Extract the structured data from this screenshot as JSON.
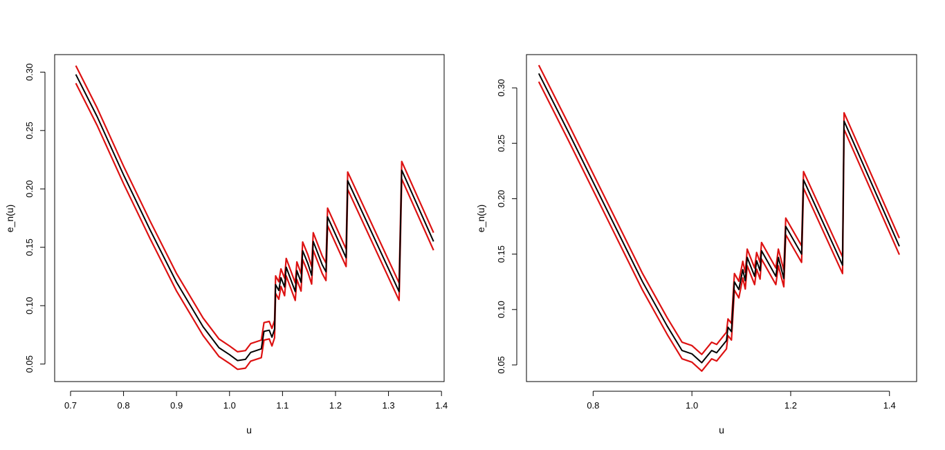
{
  "colors": {
    "main": "#000000",
    "band": "#dd1111",
    "frame": "#000000"
  },
  "chart_data": [
    {
      "type": "line",
      "xlabel": "u",
      "ylabel": "e_n(u)",
      "xlim": [
        0.67,
        1.405
      ],
      "ylim": [
        0.035,
        0.315
      ],
      "xticks": [
        0.7,
        0.8,
        0.9,
        1.0,
        1.1,
        1.2,
        1.3,
        1.4
      ],
      "xtick_labels": [
        "0.7",
        "0.8",
        "0.9",
        "1.0",
        "1.1",
        "1.2",
        "1.3",
        "1.4"
      ],
      "yticks": [
        0.05,
        0.1,
        0.15,
        0.2,
        0.25,
        0.3
      ],
      "ytick_labels": [
        "0.05",
        "0.10",
        "0.15",
        "0.20",
        "0.25",
        "0.30"
      ],
      "band_offset": 0.0075,
      "series": [
        {
          "color": "#000000",
          "points": [
            [
              0.71,
              0.298
            ],
            [
              0.75,
              0.262
            ],
            [
              0.8,
              0.212
            ],
            [
              0.85,
              0.165
            ],
            [
              0.9,
              0.12
            ],
            [
              0.95,
              0.082
            ],
            [
              0.98,
              0.064
            ],
            [
              1.0,
              0.058
            ],
            [
              1.015,
              0.053
            ],
            [
              1.03,
              0.054
            ],
            [
              1.04,
              0.06
            ],
            [
              1.06,
              0.063
            ],
            [
              1.065,
              0.078
            ],
            [
              1.075,
              0.079
            ],
            [
              1.08,
              0.073
            ],
            [
              1.085,
              0.08
            ],
            [
              1.087,
              0.118
            ],
            [
              1.093,
              0.113
            ],
            [
              1.097,
              0.124
            ],
            [
              1.104,
              0.116
            ],
            [
              1.107,
              0.133
            ],
            [
              1.124,
              0.112
            ],
            [
              1.127,
              0.13
            ],
            [
              1.135,
              0.12
            ],
            [
              1.138,
              0.147
            ],
            [
              1.148,
              0.136
            ],
            [
              1.155,
              0.126
            ],
            [
              1.158,
              0.155
            ],
            [
              1.175,
              0.135
            ],
            [
              1.182,
              0.129
            ],
            [
              1.185,
              0.176
            ],
            [
              1.22,
              0.141
            ],
            [
              1.223,
              0.207
            ],
            [
              1.32,
              0.112
            ],
            [
              1.325,
              0.216
            ],
            [
              1.385,
              0.155
            ]
          ]
        }
      ]
    },
    {
      "type": "line",
      "xlabel": "u",
      "ylabel": "e_n(u)",
      "xlim": [
        0.665,
        1.455
      ],
      "ylim": [
        0.035,
        0.33
      ],
      "xticks": [
        0.8,
        1.0,
        1.2,
        1.4
      ],
      "xtick_labels": [
        "0.8",
        "1.0",
        "1.2",
        "1.4"
      ],
      "yticks": [
        0.05,
        0.1,
        0.15,
        0.2,
        0.25,
        0.3
      ],
      "ytick_labels": [
        "0.05",
        "0.10",
        "0.15",
        "0.20",
        "0.25",
        "0.30"
      ],
      "band_offset": 0.0075,
      "series": [
        {
          "color": "#000000",
          "points": [
            [
              0.69,
              0.313
            ],
            [
              0.75,
              0.26
            ],
            [
              0.8,
              0.215
            ],
            [
              0.85,
              0.17
            ],
            [
              0.9,
              0.125
            ],
            [
              0.95,
              0.085
            ],
            [
              0.98,
              0.063
            ],
            [
              1.0,
              0.06
            ],
            [
              1.02,
              0.052
            ],
            [
              1.04,
              0.063
            ],
            [
              1.05,
              0.061
            ],
            [
              1.07,
              0.072
            ],
            [
              1.073,
              0.084
            ],
            [
              1.08,
              0.08
            ],
            [
              1.086,
              0.125
            ],
            [
              1.095,
              0.118
            ],
            [
              1.103,
              0.136
            ],
            [
              1.108,
              0.126
            ],
            [
              1.112,
              0.147
            ],
            [
              1.127,
              0.13
            ],
            [
              1.131,
              0.144
            ],
            [
              1.138,
              0.135
            ],
            [
              1.141,
              0.153
            ],
            [
              1.17,
              0.13
            ],
            [
              1.175,
              0.147
            ],
            [
              1.186,
              0.128
            ],
            [
              1.19,
              0.175
            ],
            [
              1.222,
              0.15
            ],
            [
              1.226,
              0.217
            ],
            [
              1.305,
              0.14
            ],
            [
              1.308,
              0.27
            ],
            [
              1.42,
              0.157
            ]
          ]
        }
      ]
    }
  ]
}
